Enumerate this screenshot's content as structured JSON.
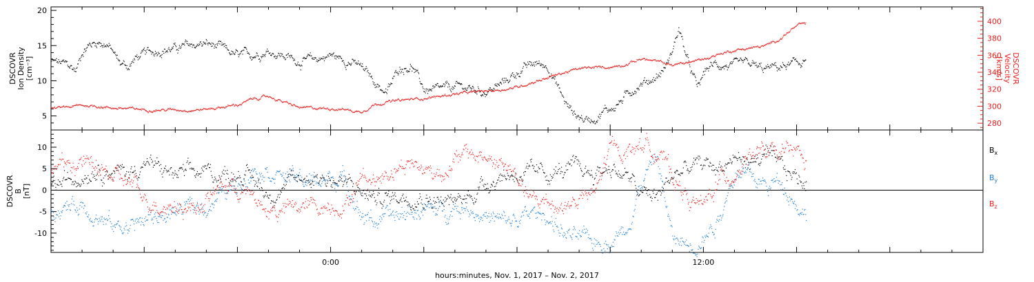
{
  "figure": {
    "xlabel": "hours:minutes, Nov.  1, 2017 – Nov.  2, 2017",
    "x_tick_labels": [
      {
        "x": 0,
        "label": "0:00"
      },
      {
        "x": 12,
        "label": "12:00"
      }
    ],
    "colors": {
      "black": "#000000",
      "red": "#e8201e",
      "blue": "#1f7fd1"
    }
  },
  "chart_data": [
    {
      "type": "scatter",
      "panel": "plasma",
      "x_unit": "hours relative to Nov. 1, 2017 00:00",
      "xlim": [
        -9,
        21
      ],
      "ylabel_left": [
        "DSCOVR",
        "Ion Density",
        "[cm⁻³]"
      ],
      "ylim_left": [
        3,
        20.5
      ],
      "yticks_left": [
        5,
        10,
        15,
        20
      ],
      "ylabel_right": [
        "DSCOVR",
        "Velocity",
        "[km/s]"
      ],
      "ylim_right": [
        272,
        417
      ],
      "yticks_right": [
        280,
        300,
        320,
        340,
        360,
        380,
        400
      ],
      "series": [
        {
          "axis": "left",
          "color": "black",
          "x": [
            -9.0,
            -8.5,
            -8.2,
            -8.0,
            -7.8,
            -7.5,
            -7.2,
            -7.0,
            -6.8,
            -6.5,
            -6.3,
            -6.0,
            -5.5,
            -5.0,
            -4.5,
            -4.0,
            -3.5,
            -3.0,
            -2.5,
            -2.0,
            -1.5,
            -1.0,
            -0.5,
            0.0,
            0.3,
            0.6,
            0.9,
            1.2,
            1.5,
            1.8,
            2.2,
            2.6,
            3.0,
            3.4,
            3.8,
            4.2,
            4.6,
            5.0,
            5.4,
            5.8,
            6.2,
            6.6,
            7.0,
            7.3,
            7.6,
            7.9,
            8.2,
            8.5,
            8.8,
            9.1,
            9.4,
            9.7,
            10.0,
            10.3,
            10.6,
            10.9,
            11.2,
            11.5,
            11.8,
            12.1,
            12.4,
            12.7,
            13.0,
            13.3,
            13.6,
            13.9,
            14.2,
            14.5,
            14.8,
            15.1,
            15.3
          ],
          "y": [
            12.8,
            12.3,
            11.5,
            14.3,
            15.1,
            15.6,
            15.2,
            14.0,
            12.6,
            12.1,
            13.2,
            13.8,
            14.5,
            14.6,
            15.1,
            15.3,
            14.6,
            13.5,
            13.8,
            14.3,
            13.6,
            12.8,
            13.1,
            13.7,
            13.2,
            12.8,
            12.2,
            11.0,
            9.5,
            8.3,
            11.9,
            12.2,
            8.8,
            8.6,
            9.0,
            9.2,
            8.8,
            8.5,
            9.3,
            10.6,
            11.8,
            12.5,
            12.2,
            9.2,
            6.5,
            5.2,
            4.5,
            4.8,
            5.8,
            6.3,
            7.4,
            8.8,
            9.7,
            10.2,
            11.0,
            13.1,
            17.5,
            12.5,
            9.0,
            11.8,
            12.4,
            12.2,
            12.0,
            12.4,
            12.2,
            11.6,
            11.9,
            12.0,
            12.3,
            12.6,
            13.2
          ]
        },
        {
          "axis": "right",
          "color": "red",
          "x": [
            -9.0,
            -8.5,
            -8.0,
            -7.5,
            -7.2,
            -7.0,
            -6.5,
            -6.0,
            -5.5,
            -5.0,
            -4.5,
            -4.0,
            -3.5,
            -3.0,
            -2.5,
            -2.0,
            -1.5,
            -1.0,
            -0.5,
            0.0,
            0.5,
            0.8,
            1.0,
            1.4,
            1.8,
            2.2,
            2.6,
            3.0,
            3.5,
            4.0,
            4.5,
            5.0,
            5.5,
            6.0,
            6.5,
            7.0,
            7.5,
            8.0,
            8.5,
            9.0,
            9.5,
            10.0,
            10.5,
            11.0,
            11.5,
            12.0,
            12.5,
            13.0,
            13.5,
            14.0,
            14.5,
            14.8,
            15.0,
            15.3
          ],
          "y": [
            297.5,
            299.0,
            301.5,
            300.5,
            299.0,
            298.5,
            297.5,
            296.5,
            296.0,
            296.5,
            296.0,
            297.0,
            299.5,
            302.0,
            309.0,
            312.0,
            305.0,
            298.5,
            298.0,
            298.0,
            296.5,
            294.0,
            294.5,
            302.5,
            305.5,
            307.0,
            308.5,
            310.0,
            312.0,
            315.0,
            316.5,
            318.5,
            320.0,
            323.0,
            329.0,
            334.5,
            340.0,
            344.5,
            346.0,
            346.5,
            350.0,
            356.5,
            353.0,
            349.0,
            352.0,
            356.0,
            362.0,
            366.5,
            369.0,
            371.5,
            381.0,
            390.0,
            395.0,
            398.0
          ]
        }
      ]
    },
    {
      "type": "scatter",
      "panel": "magnetic_field",
      "x_unit": "hours relative to Nov. 1, 2017 00:00",
      "xlim": [
        -9,
        21
      ],
      "ylabel": [
        "DSCOVR",
        "B",
        "[nT]"
      ],
      "ylim": [
        -14.5,
        14
      ],
      "yticks": [
        -10,
        -5,
        0,
        5,
        10
      ],
      "zero_line": true,
      "legend": "right",
      "series": [
        {
          "name": "Bx",
          "legend_main": "B",
          "legend_sub": "x",
          "color": "black",
          "x": [
            -9.0,
            -8.5,
            -8.0,
            -7.5,
            -7.0,
            -6.5,
            -6.0,
            -5.5,
            -5.0,
            -4.5,
            -4.0,
            -3.5,
            -3.0,
            -2.5,
            -2.0,
            -1.5,
            -1.0,
            -0.5,
            0.0,
            0.5,
            1.0,
            1.5,
            2.0,
            2.5,
            3.0,
            3.5,
            4.0,
            4.5,
            5.0,
            5.5,
            6.0,
            6.5,
            7.0,
            7.5,
            8.0,
            8.5,
            9.0,
            9.5,
            10.0,
            10.5,
            11.0,
            11.5,
            12.0,
            12.5,
            13.0,
            13.5,
            14.0,
            14.5,
            15.0,
            15.3
          ],
          "y": [
            1.0,
            2.0,
            4.0,
            5.5,
            4.5,
            4.0,
            6.5,
            5.0,
            3.5,
            3.8,
            4.2,
            3.5,
            4.5,
            2.5,
            -1.0,
            1.0,
            2.5,
            3.5,
            2.5,
            1.5,
            -0.5,
            -2.0,
            -1.5,
            -0.8,
            -1.5,
            -2.5,
            -3.0,
            -1.0,
            2.0,
            3.5,
            4.0,
            3.5,
            4.0,
            4.5,
            4.8,
            4.0,
            5.5,
            3.5,
            -1.0,
            -1.5,
            3.5,
            5.0,
            6.0,
            5.5,
            7.5,
            6.5,
            8.0,
            5.0,
            3.0,
            1.5
          ]
        },
        {
          "name": "By",
          "legend_main": "B",
          "legend_sub": "y",
          "color": "blue",
          "x": [
            -9.0,
            -8.5,
            -8.0,
            -7.5,
            -7.0,
            -6.5,
            -6.0,
            -5.5,
            -5.0,
            -4.5,
            -4.0,
            -3.5,
            -3.0,
            -2.5,
            -2.0,
            -1.5,
            -1.0,
            -0.5,
            0.0,
            0.5,
            1.0,
            1.5,
            2.0,
            2.5,
            3.0,
            3.5,
            4.0,
            4.5,
            5.0,
            5.5,
            6.0,
            6.5,
            7.0,
            7.5,
            8.0,
            8.5,
            9.0,
            9.5,
            10.0,
            10.5,
            11.0,
            11.5,
            12.0,
            12.5,
            13.0,
            13.5,
            14.0,
            14.5,
            15.0,
            15.3
          ],
          "y": [
            -4.5,
            -4.0,
            -3.0,
            -6.0,
            -8.5,
            -8.0,
            -7.0,
            -6.0,
            -5.0,
            -4.0,
            -3.5,
            -1.0,
            1.0,
            5.5,
            5.0,
            3.5,
            2.5,
            2.0,
            3.0,
            2.5,
            -6.0,
            -7.0,
            -6.5,
            -5.0,
            -4.5,
            -5.0,
            -3.5,
            -4.0,
            -6.0,
            -7.5,
            -7.0,
            -5.5,
            -6.0,
            -10.0,
            -11.5,
            -12.0,
            -11.5,
            -9.0,
            2.0,
            8.0,
            -11.5,
            -12.5,
            -11.0,
            -6.0,
            4.5,
            3.0,
            1.0,
            2.5,
            -3.0,
            -6.0
          ]
        },
        {
          "name": "Bz",
          "legend_main": "B",
          "legend_sub": "z",
          "color": "red",
          "x": [
            -9.0,
            -8.5,
            -8.0,
            -7.5,
            -7.0,
            -6.5,
            -6.0,
            -5.5,
            -5.0,
            -4.5,
            -4.0,
            -3.5,
            -3.0,
            -2.5,
            -2.0,
            -1.5,
            -1.0,
            -0.5,
            0.0,
            0.5,
            1.0,
            1.5,
            2.0,
            2.5,
            3.0,
            3.5,
            4.0,
            4.5,
            5.0,
            5.5,
            6.0,
            6.5,
            7.0,
            7.5,
            8.0,
            8.5,
            9.0,
            9.5,
            10.0,
            10.5,
            11.0,
            11.5,
            12.0,
            12.5,
            13.0,
            13.5,
            14.0,
            14.5,
            15.0,
            15.3
          ],
          "y": [
            5.0,
            6.0,
            6.5,
            5.0,
            3.0,
            2.0,
            -2.0,
            -3.0,
            -3.5,
            -4.0,
            -2.5,
            1.5,
            0.5,
            -2.0,
            -5.0,
            -4.5,
            -4.0,
            -3.5,
            -3.5,
            -3.0,
            3.5,
            2.5,
            5.5,
            6.5,
            5.0,
            4.0,
            7.0,
            8.5,
            7.5,
            6.0,
            3.0,
            -3.0,
            -2.5,
            -4.0,
            -2.0,
            -1.0,
            10.0,
            9.0,
            11.0,
            9.5,
            3.5,
            -2.0,
            -4.0,
            2.5,
            4.0,
            9.0,
            8.5,
            8.0,
            9.5,
            5.5
          ]
        }
      ]
    }
  ]
}
